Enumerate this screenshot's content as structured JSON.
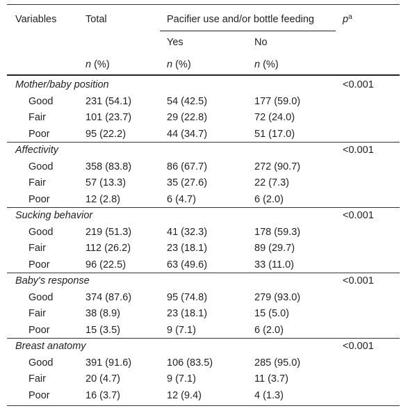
{
  "header": {
    "variables": "Variables",
    "total": "Total",
    "group": "Pacifier use and/or bottle feeding",
    "p_label": "p",
    "p_sup": "a",
    "yes": "Yes",
    "no": "No",
    "n_italic": "n",
    "n_pct": " (%)"
  },
  "sections": [
    {
      "title": "Mother/baby position",
      "p": "<0.001",
      "rows": [
        {
          "label": "Good",
          "total": "231 (54.1)",
          "yes": "54 (42.5)",
          "no": "177 (59.0)"
        },
        {
          "label": "Fair",
          "total": "101 (23.7)",
          "yes": "29 (22.8)",
          "no": "72 (24.0)"
        },
        {
          "label": "Poor",
          "total": "95 (22.2)",
          "yes": "44 (34.7)",
          "no": "51 (17.0)"
        }
      ]
    },
    {
      "title": "Affectivity",
      "p": "<0.001",
      "rows": [
        {
          "label": "Good",
          "total": "358 (83.8)",
          "yes": "86 (67.7)",
          "no": "272 (90.7)"
        },
        {
          "label": "Fair",
          "total": "57 (13.3)",
          "yes": "35 (27.6)",
          "no": "22 (7.3)"
        },
        {
          "label": "Poor",
          "total": "12 (2.8)",
          "yes": "6 (4.7)",
          "no": "6 (2.0)"
        }
      ]
    },
    {
      "title": "Sucking behavior",
      "p": "<0.001",
      "rows": [
        {
          "label": "Good",
          "total": "219 (51.3)",
          "yes": "41 (32.3)",
          "no": "178 (59.3)"
        },
        {
          "label": "Fair",
          "total": "112 (26.2)",
          "yes": "23 (18.1)",
          "no": "89 (29.7)"
        },
        {
          "label": "Poor",
          "total": "96 (22.5)",
          "yes": "63 (49.6)",
          "no": "33 (11.0)"
        }
      ]
    },
    {
      "title": "Baby's response",
      "p": "<0.001",
      "rows": [
        {
          "label": "Good",
          "total": "374 (87.6)",
          "yes": "95 (74.8)",
          "no": "279 (93.0)"
        },
        {
          "label": "Fair",
          "total": "38 (8.9)",
          "yes": "23 (18.1)",
          "no": "15 (5.0)"
        },
        {
          "label": "Poor",
          "total": "15 (3.5)",
          "yes": "9 (7.1)",
          "no": "6 (2.0)"
        }
      ]
    },
    {
      "title": "Breast anatomy",
      "p": "<0.001",
      "rows": [
        {
          "label": "Good",
          "total": "391 (91.6)",
          "yes": "106 (83.5)",
          "no": "285 (95.0)"
        },
        {
          "label": "Fair",
          "total": "20 (4.7)",
          "yes": "9 (7.1)",
          "no": "11 (3.7)"
        },
        {
          "label": "Poor",
          "total": "16 (3.7)",
          "yes": "12 (9.4)",
          "no": "4 (1.3)"
        }
      ]
    }
  ]
}
